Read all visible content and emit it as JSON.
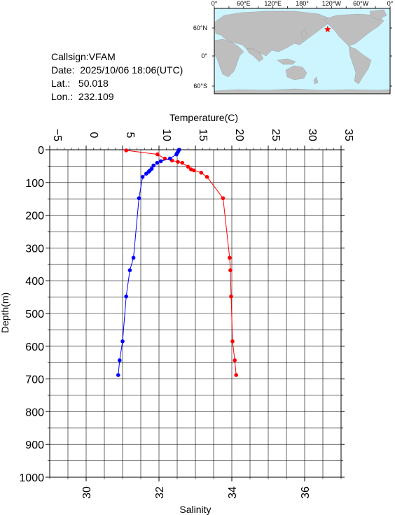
{
  "station": {
    "callsign_label": "Callsign:",
    "callsign": "VFAM",
    "date_label": "Date:",
    "date": "2025/10/06 18:06(UTC)",
    "lat_label": "Lat.:",
    "lat": "50.018",
    "lon_label": "Lon.:",
    "lon": "232.109"
  },
  "map": {
    "top_labels": [
      "0°",
      "60°E",
      "120°E",
      "180°",
      "120°W",
      "60°W",
      "0°"
    ],
    "lat_labels": [
      "60°N",
      "0°",
      "60°S"
    ],
    "ocean_color": "#ccf5ff",
    "land_color": "#bebebe",
    "marker_color": "#ff0000",
    "marker_icon": "red-star-icon"
  },
  "chart_data": {
    "type": "line",
    "y_axis": {
      "label": "Depth(m)",
      "range": [
        0,
        1000
      ],
      "ticks": [
        "0",
        "100",
        "200",
        "300",
        "400",
        "500",
        "600",
        "700",
        "800",
        "900",
        "1000"
      ],
      "inverted": true
    },
    "top_axis": {
      "label": "Temperature(C)",
      "range": [
        -5,
        35
      ],
      "ticks": [
        "−5",
        "0",
        "5",
        "10",
        "15",
        "20",
        "25",
        "30",
        "35"
      ]
    },
    "bottom_axis": {
      "label": "Salinity",
      "range": [
        29,
        37
      ],
      "ticks": [
        "30",
        "32",
        "34",
        "36"
      ]
    },
    "grid": true,
    "series": [
      {
        "axis": "temperature",
        "color": "#ff0000",
        "points": [
          {
            "value": 5.5,
            "depth": 2
          },
          {
            "value": 9.8,
            "depth": 14
          },
          {
            "value": 10.8,
            "depth": 27
          },
          {
            "value": 11.8,
            "depth": 33
          },
          {
            "value": 12.6,
            "depth": 37
          },
          {
            "value": 13.2,
            "depth": 40
          },
          {
            "value": 14.0,
            "depth": 52
          },
          {
            "value": 14.4,
            "depth": 60
          },
          {
            "value": 14.8,
            "depth": 63
          },
          {
            "value": 15.8,
            "depth": 70
          },
          {
            "value": 16.6,
            "depth": 83
          },
          {
            "value": 18.8,
            "depth": 148
          },
          {
            "value": 19.7,
            "depth": 330
          },
          {
            "value": 19.8,
            "depth": 368
          },
          {
            "value": 19.9,
            "depth": 448
          },
          {
            "value": 20.1,
            "depth": 585
          },
          {
            "value": 20.4,
            "depth": 643
          },
          {
            "value": 20.6,
            "depth": 688
          }
        ]
      },
      {
        "axis": "salinity",
        "color": "#0000ff",
        "points": [
          {
            "value": 32.55,
            "depth": 0
          },
          {
            "value": 32.53,
            "depth": 5
          },
          {
            "value": 32.5,
            "depth": 10
          },
          {
            "value": 32.48,
            "depth": 14
          },
          {
            "value": 32.3,
            "depth": 27
          },
          {
            "value": 32.05,
            "depth": 35
          },
          {
            "value": 31.95,
            "depth": 40
          },
          {
            "value": 31.85,
            "depth": 48
          },
          {
            "value": 31.8,
            "depth": 58
          },
          {
            "value": 31.75,
            "depth": 63
          },
          {
            "value": 31.72,
            "depth": 67
          },
          {
            "value": 31.65,
            "depth": 73
          },
          {
            "value": 31.55,
            "depth": 83
          },
          {
            "value": 31.45,
            "depth": 148
          },
          {
            "value": 31.3,
            "depth": 330
          },
          {
            "value": 31.2,
            "depth": 368
          },
          {
            "value": 31.1,
            "depth": 448
          },
          {
            "value": 31.0,
            "depth": 585
          },
          {
            "value": 30.92,
            "depth": 643
          },
          {
            "value": 30.88,
            "depth": 688
          }
        ]
      }
    ]
  }
}
